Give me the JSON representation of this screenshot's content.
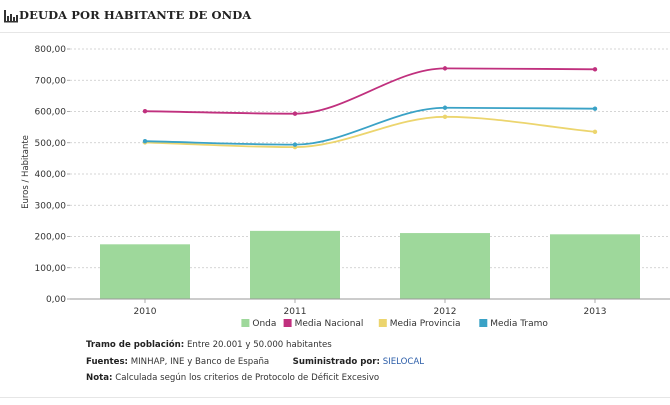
{
  "header": {
    "title": "DEUDA POR HABITANTE DE ONDA",
    "icon": "bar-chart-icon"
  },
  "chart_data": {
    "type": "bar+line",
    "title": "DEUDA POR HABITANTE DE ONDA",
    "ylabel": "Euros / Habitante",
    "xlabel": "",
    "categories": [
      "2010",
      "2011",
      "2012",
      "2013"
    ],
    "ylim": [
      0,
      800
    ],
    "yticks": [
      "0,00",
      "100,00",
      "200,00",
      "300,00",
      "400,00",
      "500,00",
      "600,00",
      "700,00",
      "800,00"
    ],
    "grid": true,
    "legend_position": "bottom",
    "bars": {
      "name": "Onda",
      "color": "#9ed89b",
      "values": [
        175,
        218,
        211,
        207
      ]
    },
    "series": [
      {
        "name": "Media Nacional",
        "color": "#c0307e",
        "values": [
          601,
          593,
          738,
          735
        ]
      },
      {
        "name": "Media Provincia",
        "color": "#ecd56e",
        "values": [
          501,
          486,
          583,
          535
        ]
      },
      {
        "name": "Media Tramo",
        "color": "#3aa2c6",
        "values": [
          505,
          494,
          612,
          609
        ]
      }
    ]
  },
  "notes": {
    "tramo_label": "Tramo de población:",
    "tramo_value": "Entre 20.001 y 50.000 habitantes",
    "fuentes_label": "Fuentes:",
    "fuentes_value": "MINHAP, INE y Banco de España",
    "suministrado_label": "Suministrado por:",
    "suministrado_value": "SIELOCAL",
    "nota_label": "Nota:",
    "nota_value": "Calculada según los criterios de Protocolo de Déficit Excesivo"
  }
}
